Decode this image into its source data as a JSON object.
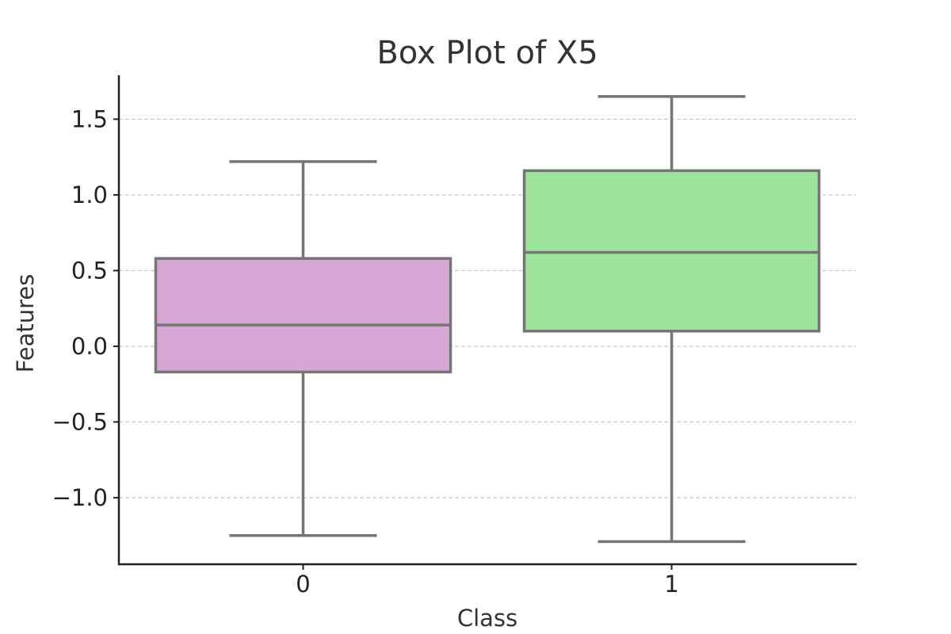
{
  "chart_data": {
    "type": "box",
    "title": "Box Plot of X5",
    "xlabel": "Class",
    "ylabel": "Features",
    "categories": [
      "0",
      "1"
    ],
    "boxes": [
      {
        "category": "0",
        "whisker_low": -1.25,
        "q1": -0.17,
        "median": 0.14,
        "q3": 0.58,
        "whisker_high": 1.22,
        "color": "#d6a6d4"
      },
      {
        "category": "1",
        "whisker_low": -1.29,
        "q1": 0.1,
        "median": 0.62,
        "q3": 1.16,
        "whisker_high": 1.65,
        "color": "#9de39d"
      }
    ],
    "ylim": [
      -1.44,
      1.79
    ],
    "yticks": [
      1.5,
      1.0,
      0.5,
      0.0,
      -0.5,
      -1.0
    ],
    "ytick_labels": [
      "1.5",
      "1.0",
      "0.5",
      "0.0",
      "−0.5",
      "−1.0"
    ],
    "grid": "horizontal dashed",
    "line_color": "#757575"
  }
}
